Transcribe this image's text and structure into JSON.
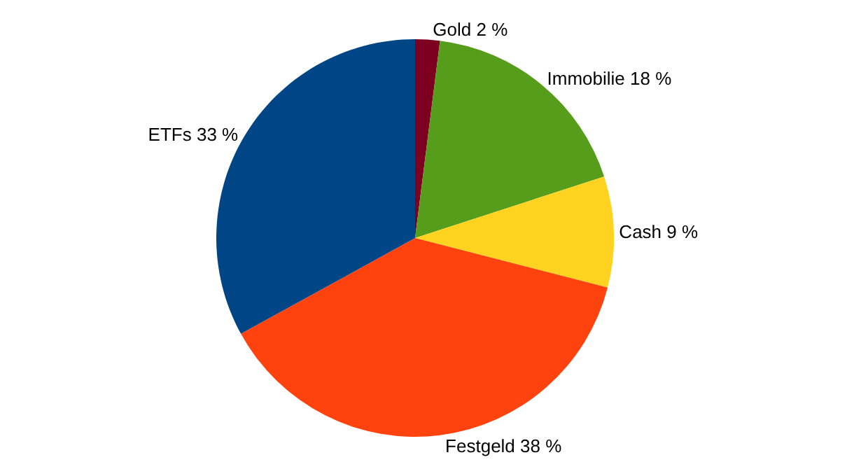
{
  "chart_data": {
    "type": "pie",
    "categories": [
      "Gold",
      "Immobilie",
      "Cash",
      "Festgeld",
      "ETFs"
    ],
    "values": [
      2,
      18,
      9,
      38,
      33
    ],
    "value_labels": [
      "2 %",
      "18 %",
      "9 %",
      "38 %",
      "33 %"
    ],
    "colors": [
      "#7e0021",
      "#579d1c",
      "#ffd320",
      "#ff420e",
      "#004586"
    ],
    "legend": false
  }
}
